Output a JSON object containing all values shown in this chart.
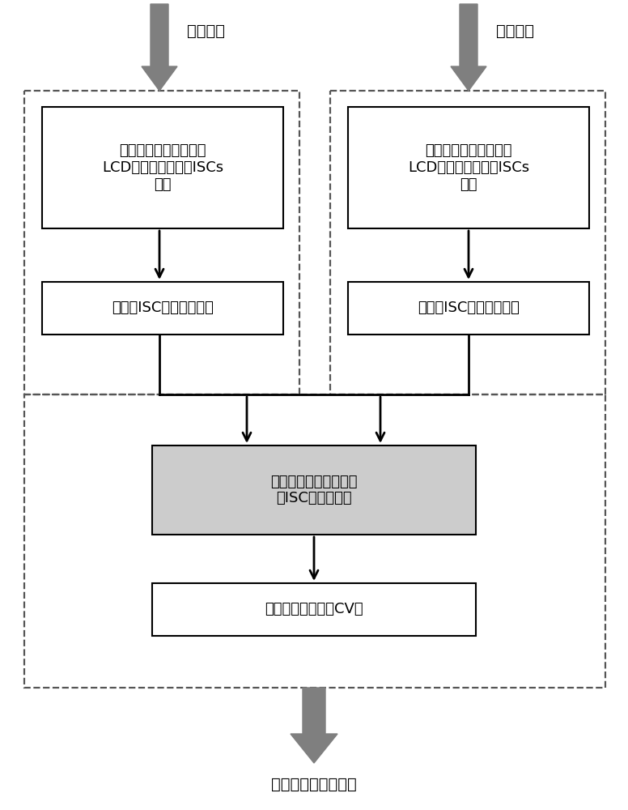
{
  "bg_color": "#ffffff",
  "arrow_color_gray": "#7f7f7f",
  "arrow_color_black": "#000000",
  "dashed_border_color": "#555555",
  "box_border_color": "#000000",
  "box_fill_white": "#ffffff",
  "box_fill_gray": "#cccccc",
  "text_color": "#000000",
  "label_top_left": "正常信号",
  "label_top_right": "测试信号",
  "box1_text": "将正常的振动信号进行\nLCD分解得到若干个ISCs\n分量",
  "box2_text": "提取各ISC分量的近似熵",
  "box3_text": "将测试的振动信号进行\nLCD分解得到若干个ISCs\n分量",
  "box4_text": "提取各ISC分量的近似熵",
  "box5_text": "近似正常数据和测试数\n据ISC的流形距离",
  "box6_text": "转换成为置信度（CV）",
  "label_bottom": "评估出轴承的健康度",
  "fig_width": 7.76,
  "fig_height": 10.0
}
